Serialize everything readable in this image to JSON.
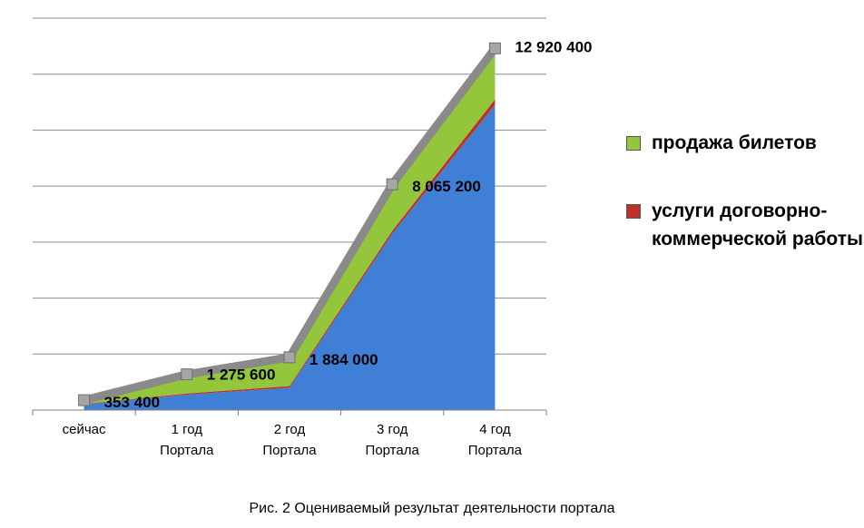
{
  "chart_data": {
    "type": "area",
    "stacked": true,
    "categories": [
      "сейчас",
      "1 год\nПортала",
      "2 год\nПортала",
      "3 год\nПортала",
      "4 год\nПортала"
    ],
    "series": [
      {
        "name": "",
        "color": "#3f7fd6",
        "values": [
          200000,
          550000,
          800000,
          6300000,
          10900000
        ]
      },
      {
        "name": "услуги договорно-коммерческой работы",
        "color": "#c0302b",
        "values": [
          20000,
          40000,
          60000,
          100000,
          200000
        ]
      },
      {
        "name": "продажа билетов",
        "color": "#93c63a",
        "values": [
          133400,
          685600,
          1024000,
          1665200,
          1820400
        ]
      }
    ],
    "totals": [
      353400,
      1275600,
      1884000,
      8065200,
      12920400
    ],
    "data_labels": [
      "353 400",
      "1 275 600",
      "1 884 000",
      "8 065 200",
      "12 920 400"
    ],
    "ylim": [
      0,
      14000000
    ],
    "grid": true,
    "legend_position": "right",
    "caption": "Рис. 2 Оцениваемый результат деятельности портала"
  }
}
